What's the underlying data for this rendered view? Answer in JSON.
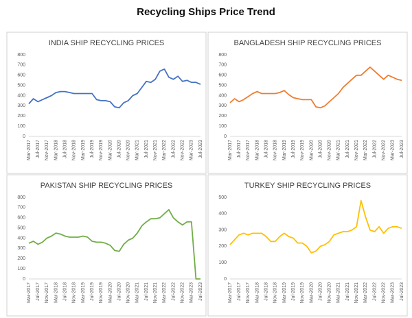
{
  "title": "Recycling Ships Price Trend",
  "chart_data": [
    {
      "type": "line",
      "title": "INDIA SHIP RECYCLING PRICES",
      "categories": [
        "Mar-2017",
        null,
        "Jul-2017",
        null,
        "Nov-2017",
        null,
        "Mar-2018",
        null,
        "Jul-2018",
        null,
        "Nov-2018",
        null,
        "Mar-2019",
        null,
        "Jul-2019",
        null,
        "Nov-2019",
        null,
        "Mar-2020",
        null,
        "Jul-2020",
        null,
        "Nov-2020",
        null,
        "Mar-2021",
        null,
        "Jul-2021",
        null,
        "Nov-2021",
        null,
        "Mar-2022",
        null,
        "Jul-2022",
        null,
        "Nov-2022",
        null,
        "Mar-2023",
        null,
        "Jul-2023"
      ],
      "series": [
        {
          "name": "India",
          "color": "#4472c4",
          "values": [
            320,
            370,
            340,
            360,
            380,
            400,
            430,
            440,
            440,
            430,
            420,
            420,
            420,
            420,
            420,
            360,
            350,
            350,
            340,
            290,
            280,
            330,
            350,
            400,
            420,
            480,
            540,
            530,
            560,
            640,
            660,
            580,
            560,
            590,
            540,
            550,
            530,
            530,
            510
          ]
        }
      ],
      "ylim": [
        0,
        800
      ],
      "yticks": [
        0,
        100,
        200,
        300,
        400,
        500,
        600,
        700,
        800
      ],
      "grid": false
    },
    {
      "type": "line",
      "title": "BANGLADESH SHIP RECYCLING PRICES",
      "categories": [
        "Mar-2017",
        null,
        "Jul-2017",
        null,
        "Nov-2017",
        null,
        "Mar-2018",
        null,
        "Jul-2018",
        null,
        "Nov-2018",
        null,
        "Mar-2019",
        null,
        "Jul-2019",
        null,
        "Nov-2019",
        null,
        "Mar-2020",
        null,
        "Jul-2020",
        null,
        "Nov-2020",
        null,
        "Mar-2021",
        null,
        "Jul-2021",
        null,
        "Nov-2021",
        null,
        "Mar-2022",
        null,
        "Jul-2022",
        null,
        "Nov-2022",
        null,
        "Mar-2023",
        null,
        "Jul-2023"
      ],
      "series": [
        {
          "name": "Bangladesh",
          "color": "#ed7d31",
          "values": [
            330,
            370,
            340,
            360,
            390,
            420,
            440,
            420,
            420,
            420,
            420,
            430,
            450,
            410,
            380,
            370,
            360,
            360,
            360,
            290,
            280,
            300,
            340,
            380,
            420,
            480,
            520,
            560,
            600,
            600,
            640,
            680,
            640,
            600,
            560,
            600,
            580,
            560,
            550
          ]
        }
      ],
      "ylim": [
        0,
        800
      ],
      "yticks": [
        0,
        100,
        200,
        300,
        400,
        500,
        600,
        700,
        800
      ],
      "grid": false
    },
    {
      "type": "line",
      "title": "PAKISTAN SHIP RECYCLING PRICES",
      "categories": [
        "Mar-2017",
        null,
        "Jul-2017",
        null,
        "Nov-2017",
        null,
        "Mar-2018",
        null,
        "Jul-2018",
        null,
        "Nov-2018",
        null,
        "Mar-2019",
        null,
        "Jul-2019",
        null,
        "Nov-2019",
        null,
        "Mar-2020",
        null,
        "Jul-2020",
        null,
        "Nov-2020",
        null,
        "Mar-2021",
        null,
        "Jul-2021",
        null,
        "Nov-2021",
        null,
        "Mar-2022",
        null,
        "Jul-2022",
        null,
        "Nov-2022",
        null,
        "Mar-2023",
        null,
        "Jul-2023"
      ],
      "series": [
        {
          "name": "Pakistan",
          "color": "#70ad47",
          "values": [
            350,
            370,
            340,
            360,
            400,
            420,
            450,
            440,
            420,
            410,
            410,
            410,
            420,
            410,
            370,
            360,
            360,
            350,
            330,
            280,
            270,
            340,
            380,
            400,
            450,
            520,
            560,
            590,
            590,
            600,
            640,
            680,
            600,
            560,
            530,
            560,
            560,
            0,
            0
          ]
        }
      ],
      "ylim": [
        0,
        800
      ],
      "yticks": [
        0,
        100,
        200,
        300,
        400,
        500,
        600,
        700,
        800
      ],
      "grid": false
    },
    {
      "type": "line",
      "title": "TURKEY SHIP RECYCLING PRICES",
      "categories": [
        "Mar-2017",
        null,
        "Jul-2017",
        null,
        "Nov-2017",
        null,
        "Mar-2018",
        null,
        "Jul-2018",
        null,
        "Nov-2018",
        null,
        "Mar-2019",
        null,
        "Jul-2019",
        null,
        "Nov-2019",
        null,
        "Mar-2020",
        null,
        "Jul-2020",
        null,
        "Nov-2020",
        null,
        "Mar-2021",
        null,
        "Jul-2021",
        null,
        "Nov-2021",
        null,
        "Mar-2022",
        null,
        "Jul-2022",
        null,
        "Nov-2022",
        null,
        "Mar-2023",
        null,
        "Jul-2023"
      ],
      "series": [
        {
          "name": "Turkey",
          "color": "#ffc000",
          "values": [
            210,
            240,
            270,
            280,
            270,
            280,
            280,
            280,
            260,
            230,
            230,
            260,
            280,
            260,
            250,
            220,
            220,
            200,
            160,
            170,
            200,
            210,
            230,
            270,
            280,
            290,
            290,
            300,
            320,
            480,
            380,
            300,
            290,
            320,
            280,
            310,
            320,
            320,
            310
          ]
        }
      ],
      "ylim": [
        0,
        500
      ],
      "yticks": [
        0,
        100,
        200,
        300,
        400,
        500
      ],
      "grid": false
    }
  ]
}
